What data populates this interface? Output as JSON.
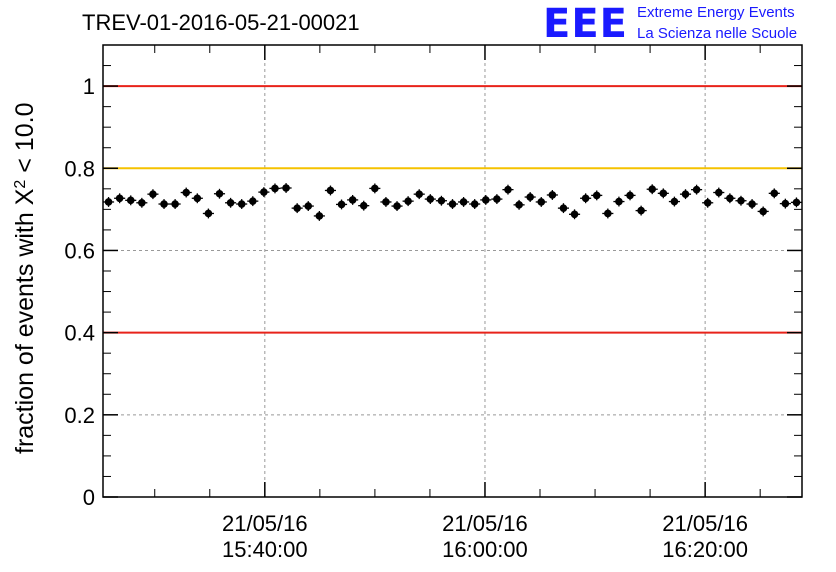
{
  "title": "TREV-01-2016-05-21-00021",
  "logo": {
    "mark": "EEE",
    "line1": "Extreme Energy Events",
    "line2": "La Scienza nelle Scuole",
    "color": "#1a1aff"
  },
  "chart_data": {
    "type": "scatter",
    "title": "TREV-01-2016-05-21-00021",
    "ylabel_main": "fraction of events with ",
    "ylabel_chi": "X",
    "ylabel_sup": "2",
    "ylabel_tail": " < 10.0",
    "ylim": [
      0,
      1.1
    ],
    "yticks": [
      0,
      0.2,
      0.4,
      0.6,
      0.8,
      1
    ],
    "ytick_labels": [
      "0",
      "0.2",
      "0.4",
      "0.6",
      "0.8",
      "1"
    ],
    "xlim_minutes": [
      0,
      63.5
    ],
    "xticks_major": [
      {
        "minute": 14.7,
        "date": "21/05/16",
        "time": "15:40:00"
      },
      {
        "minute": 34.7,
        "date": "21/05/16",
        "time": "16:00:00"
      },
      {
        "minute": 54.7,
        "date": "21/05/16",
        "time": "16:20:00"
      }
    ],
    "grid": true,
    "reference_lines": [
      {
        "y": 1.0,
        "color": "#e8231a"
      },
      {
        "y": 0.8,
        "color": "#f5c200"
      },
      {
        "y": 0.4,
        "color": "#e8231a"
      }
    ],
    "series": [
      {
        "marker_color": "#000000",
        "y": [
          0.718,
          0.727,
          0.722,
          0.716,
          0.737,
          0.713,
          0.713,
          0.741,
          0.727,
          0.69,
          0.738,
          0.716,
          0.713,
          0.72,
          0.742,
          0.751,
          0.752,
          0.703,
          0.708,
          0.684,
          0.746,
          0.712,
          0.723,
          0.709,
          0.751,
          0.718,
          0.708,
          0.72,
          0.737,
          0.725,
          0.721,
          0.713,
          0.718,
          0.713,
          0.723,
          0.725,
          0.748,
          0.711,
          0.73,
          0.718,
          0.735,
          0.703,
          0.688,
          0.727,
          0.734,
          0.69,
          0.719,
          0.734,
          0.697,
          0.749,
          0.739,
          0.719,
          0.737,
          0.748,
          0.716,
          0.741,
          0.727,
          0.721,
          0.713,
          0.695,
          0.739,
          0.714,
          0.717
        ],
        "yerr": 0.012
      }
    ]
  }
}
